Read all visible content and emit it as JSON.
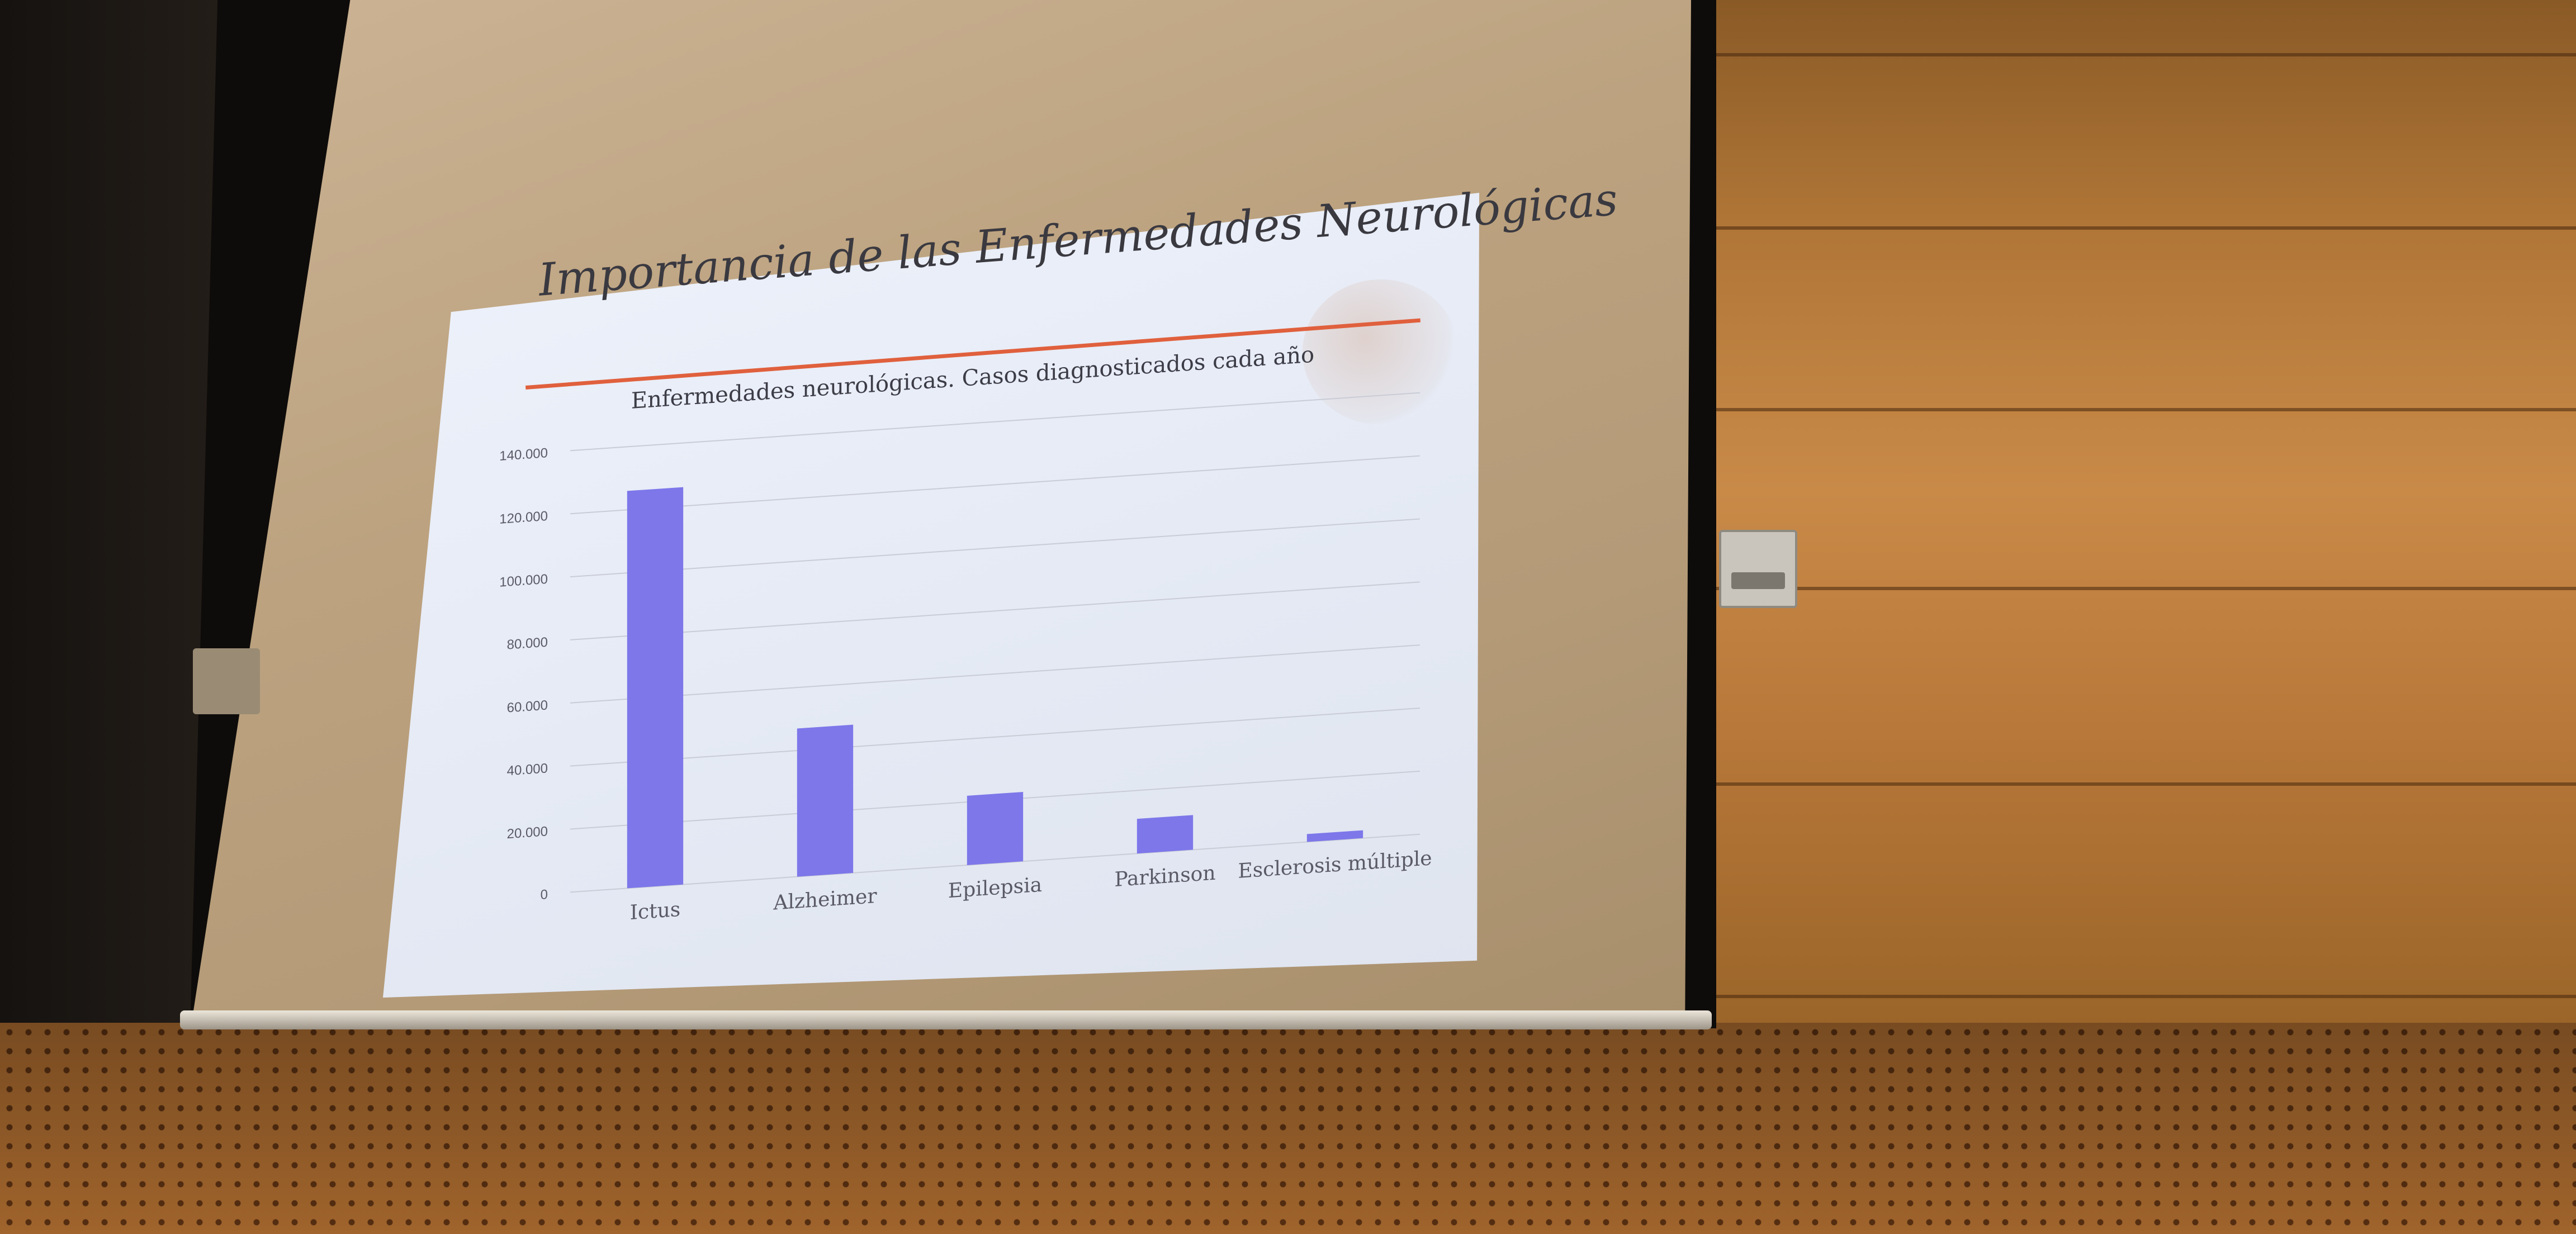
{
  "slide": {
    "title": "Importancia de las Enfermedades Neurológicas"
  },
  "chart_data": {
    "type": "bar",
    "title": "Enfermedades neurológicas. Casos diagnosticados cada año",
    "xlabel": "",
    "ylabel": "",
    "categories": [
      "Ictus",
      "Alzheimer",
      "Epilepsia",
      "Parkinson",
      "Esclerosis múltiple"
    ],
    "values": [
      126000,
      47000,
      22000,
      11000,
      2500
    ],
    "ylim": [
      0,
      140000
    ],
    "yticks": [
      "0",
      "20.000",
      "40.000",
      "60.000",
      "80.000",
      "100.000",
      "120.000",
      "140.000"
    ],
    "grid": true,
    "legend": "none",
    "bar_color": "#7d77ea"
  },
  "colors": {
    "title_rule": "#e0603d",
    "slide_background": "#e7ebf5",
    "grid": "#c9ccd6",
    "label_text": "#5a5a66"
  }
}
